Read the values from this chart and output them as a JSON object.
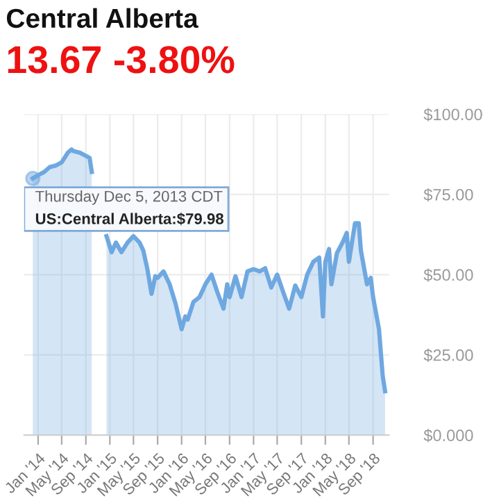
{
  "chart_data": {
    "type": "area",
    "title": "Central Alberta",
    "subtitle": "13.67 -3.80%",
    "x": [
      "2013-12-05",
      "2014-01-01",
      "2014-02-01",
      "2014-03-01",
      "2014-04-01",
      "2014-05-01",
      "2014-06-01",
      "2014-06-20",
      "2014-07-01",
      "2014-08-01",
      "2014-09-01",
      "2014-09-20",
      "2014-10-01",
      "2014-11-01",
      "2014-12-15",
      "2015-01-10",
      "2015-02-01",
      "2015-03-01",
      "2015-04-01",
      "2015-05-01",
      "2015-06-01",
      "2015-06-20",
      "2015-07-10",
      "2015-08-01",
      "2015-08-20",
      "2015-09-01",
      "2015-10-01",
      "2015-11-01",
      "2015-12-01",
      "2016-01-01",
      "2016-01-20",
      "2016-02-01",
      "2016-03-01",
      "2016-04-01",
      "2016-05-01",
      "2016-06-01",
      "2016-07-01",
      "2016-08-01",
      "2016-08-20",
      "2016-09-01",
      "2016-10-01",
      "2016-11-01",
      "2016-12-01",
      "2017-01-01",
      "2017-02-01",
      "2017-03-01",
      "2017-04-01",
      "2017-05-01",
      "2017-06-01",
      "2017-07-01",
      "2017-08-01",
      "2017-09-01",
      "2017-10-01",
      "2017-11-01",
      "2017-12-01",
      "2017-12-20",
      "2018-01-01",
      "2018-01-20",
      "2018-02-01",
      "2018-03-01",
      "2018-04-01",
      "2018-04-20",
      "2018-05-01",
      "2018-06-01",
      "2018-06-20",
      "2018-07-01",
      "2018-08-01",
      "2018-08-20",
      "2018-09-01",
      "2018-10-01",
      "2018-10-20",
      "2018-11-01"
    ],
    "series": [
      {
        "color": "#6fa8e0",
        "values": [
          80,
          81,
          82,
          83.5,
          84,
          85,
          88,
          89,
          88.5,
          88,
          87,
          86.4,
          82,
          null,
          62,
          57,
          60,
          57,
          60,
          62,
          60,
          57.5,
          52,
          44,
          49.5,
          49,
          51,
          47,
          41,
          33,
          37,
          36,
          41.5,
          43,
          47,
          50,
          44.5,
          39.4,
          47,
          43,
          49.5,
          43,
          51,
          51.7,
          51,
          52,
          46,
          50,
          44.5,
          39.4,
          46.6,
          43,
          50,
          54,
          55.3,
          37,
          54,
          58,
          47,
          56.7,
          60.3,
          63,
          54,
          66,
          66,
          57.5,
          47,
          49,
          43,
          33,
          18.4,
          13.67
        ]
      }
    ],
    "xlim": [
      "2013-10-22",
      "2018-11-20"
    ],
    "xticks": [
      {
        "value": "2014-01-01",
        "label": "Jan '14"
      },
      {
        "value": "2014-05-01",
        "label": "May '14"
      },
      {
        "value": "2014-09-01",
        "label": "Sep '14"
      },
      {
        "value": "2015-01-01",
        "label": "Jan '15"
      },
      {
        "value": "2015-05-01",
        "label": "May '15"
      },
      {
        "value": "2015-09-01",
        "label": "Sep '15"
      },
      {
        "value": "2016-01-01",
        "label": "Jan '16"
      },
      {
        "value": "2016-05-01",
        "label": "May '16"
      },
      {
        "value": "2016-09-01",
        "label": "Sep '16"
      },
      {
        "value": "2017-01-01",
        "label": "Jan '17"
      },
      {
        "value": "2017-05-01",
        "label": "May '17"
      },
      {
        "value": "2017-09-01",
        "label": "Sep '17"
      },
      {
        "value": "2018-01-01",
        "label": "Jan '18"
      },
      {
        "value": "2018-05-01",
        "label": "May '18"
      },
      {
        "value": "2018-09-01",
        "label": "Sep '18"
      }
    ],
    "ylim": [
      0,
      100
    ],
    "yticks": [
      {
        "value": 0,
        "label": "$0.000"
      },
      {
        "value": 25,
        "label": "$25.00"
      },
      {
        "value": 50,
        "label": "$50.00"
      },
      {
        "value": 75,
        "label": "$75.00"
      },
      {
        "value": 100,
        "label": "$100.00"
      }
    ],
    "grid": true,
    "annotations": [
      {
        "text": "Thursday Dec 5, 2013 CDT",
        "x": "2013-12-05",
        "y": 79.98
      },
      "US:Central Alberta:$79.98"
    ]
  }
}
